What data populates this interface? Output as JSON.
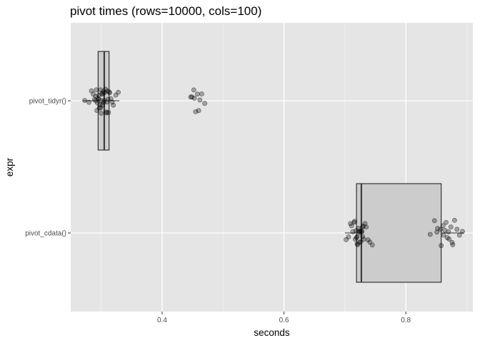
{
  "chart_data": {
    "type": "boxplot",
    "title": "pivot times (rows=10000, cols=100)",
    "xlabel": "seconds",
    "ylabel": "expr",
    "xlim": [
      0.25,
      0.91
    ],
    "x_ticks": [
      0.4,
      0.6,
      0.8
    ],
    "x_tick_labels": [
      "0.4",
      "0.6",
      "0.8"
    ],
    "grid": true,
    "categories": [
      "pivot_tidyr()",
      "pivot_cdata()"
    ],
    "boxes": [
      {
        "category": "pivot_tidyr()",
        "q1": 0.295,
        "median": 0.305,
        "q3": 0.313,
        "whisker_low": 0.27,
        "whisker_high": 0.33
      },
      {
        "category": "pivot_cdata()",
        "q1": 0.719,
        "median": 0.727,
        "q3": 0.858,
        "whisker_low": 0.7,
        "whisker_high": 0.895
      }
    ],
    "points": [
      {
        "category": "pivot_tidyr()",
        "values": [
          0.273,
          0.28,
          0.284,
          0.287,
          0.289,
          0.291,
          0.292,
          0.293,
          0.294,
          0.295,
          0.296,
          0.297,
          0.298,
          0.299,
          0.3,
          0.301,
          0.302,
          0.303,
          0.304,
          0.305,
          0.306,
          0.307,
          0.308,
          0.309,
          0.31,
          0.311,
          0.312,
          0.314,
          0.316,
          0.318,
          0.32,
          0.324,
          0.328,
          0.3,
          0.296,
          0.303,
          0.309,
          0.291,
          0.313,
          0.299,
          0.447,
          0.449,
          0.452,
          0.455,
          0.458,
          0.46,
          0.462,
          0.465,
          0.47,
          0.453
        ]
      },
      {
        "category": "pivot_cdata()",
        "values": [
          0.702,
          0.706,
          0.709,
          0.711,
          0.713,
          0.715,
          0.716,
          0.718,
          0.719,
          0.72,
          0.721,
          0.722,
          0.723,
          0.724,
          0.725,
          0.726,
          0.727,
          0.728,
          0.729,
          0.73,
          0.731,
          0.733,
          0.735,
          0.738,
          0.741,
          0.745,
          0.72,
          0.724,
          0.717,
          0.729,
          0.84,
          0.847,
          0.852,
          0.857,
          0.861,
          0.864,
          0.868,
          0.871,
          0.874,
          0.877,
          0.88,
          0.884,
          0.888,
          0.893,
          0.866,
          0.858,
          0.87,
          0.876,
          0.862,
          0.851
        ]
      }
    ]
  },
  "colors": {
    "panel": "#e5e5e5",
    "grid_major": "#ffffff",
    "grid_minor": "#f2f2f2",
    "box_fill": "#cccccc",
    "box_stroke": "#333333",
    "point": "#000000"
  }
}
